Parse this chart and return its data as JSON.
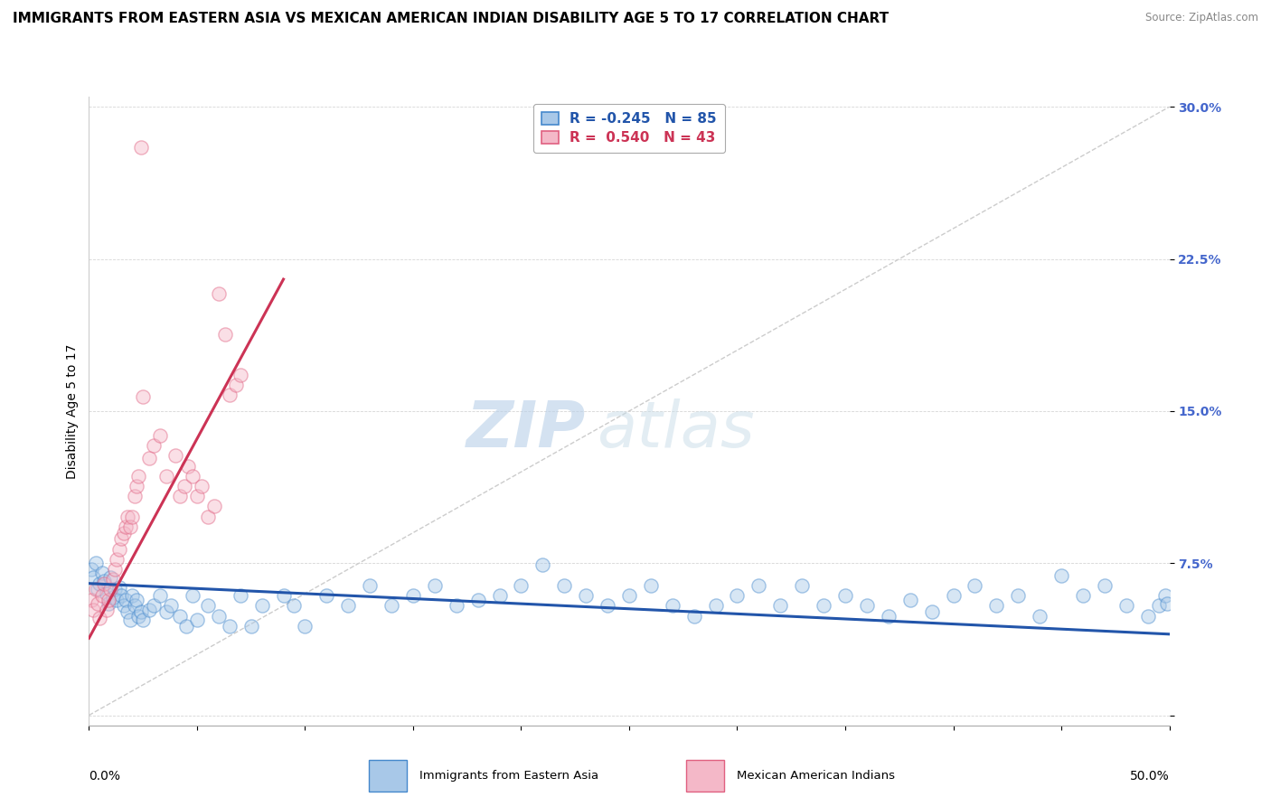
{
  "title": "IMMIGRANTS FROM EASTERN ASIA VS MEXICAN AMERICAN INDIAN DISABILITY AGE 5 TO 17 CORRELATION CHART",
  "source": "Source: ZipAtlas.com",
  "ylabel": "Disability Age 5 to 17",
  "legend_blue_r": "-0.245",
  "legend_blue_n": "85",
  "legend_pink_r": "0.540",
  "legend_pink_n": "43",
  "legend_label_blue": "Immigrants from Eastern Asia",
  "legend_label_pink": "Mexican American Indians",
  "watermark_zip": "ZIP",
  "watermark_atlas": "atlas",
  "blue_color": "#a8c8e8",
  "pink_color": "#f4b8c8",
  "blue_edge_color": "#4488cc",
  "pink_edge_color": "#e06080",
  "blue_line_color": "#2255aa",
  "pink_line_color": "#cc3355",
  "diag_line_color": "#cccccc",
  "blue_scatter_x": [
    0.001,
    0.002,
    0.003,
    0.004,
    0.005,
    0.006,
    0.007,
    0.008,
    0.009,
    0.01,
    0.011,
    0.012,
    0.013,
    0.014,
    0.015,
    0.016,
    0.017,
    0.018,
    0.019,
    0.02,
    0.021,
    0.022,
    0.023,
    0.024,
    0.025,
    0.028,
    0.03,
    0.033,
    0.036,
    0.038,
    0.042,
    0.045,
    0.048,
    0.05,
    0.055,
    0.06,
    0.065,
    0.07,
    0.075,
    0.08,
    0.09,
    0.095,
    0.1,
    0.11,
    0.12,
    0.13,
    0.14,
    0.15,
    0.16,
    0.17,
    0.18,
    0.19,
    0.2,
    0.21,
    0.22,
    0.23,
    0.24,
    0.25,
    0.26,
    0.27,
    0.28,
    0.29,
    0.3,
    0.31,
    0.32,
    0.33,
    0.34,
    0.35,
    0.36,
    0.37,
    0.38,
    0.39,
    0.4,
    0.41,
    0.42,
    0.43,
    0.44,
    0.45,
    0.46,
    0.47,
    0.48,
    0.49,
    0.495,
    0.498,
    0.499
  ],
  "blue_scatter_y": [
    0.072,
    0.068,
    0.075,
    0.062,
    0.065,
    0.07,
    0.066,
    0.06,
    0.055,
    0.068,
    0.058,
    0.062,
    0.057,
    0.063,
    0.059,
    0.054,
    0.057,
    0.051,
    0.047,
    0.059,
    0.054,
    0.057,
    0.049,
    0.051,
    0.047,
    0.052,
    0.054,
    0.059,
    0.051,
    0.054,
    0.049,
    0.044,
    0.059,
    0.047,
    0.054,
    0.049,
    0.044,
    0.059,
    0.044,
    0.054,
    0.059,
    0.054,
    0.044,
    0.059,
    0.054,
    0.064,
    0.054,
    0.059,
    0.064,
    0.054,
    0.057,
    0.059,
    0.064,
    0.074,
    0.064,
    0.059,
    0.054,
    0.059,
    0.064,
    0.054,
    0.049,
    0.054,
    0.059,
    0.064,
    0.054,
    0.064,
    0.054,
    0.059,
    0.054,
    0.049,
    0.057,
    0.051,
    0.059,
    0.064,
    0.054,
    0.059,
    0.049,
    0.069,
    0.059,
    0.064,
    0.054,
    0.049,
    0.054,
    0.059,
    0.055
  ],
  "pink_scatter_x": [
    0.001,
    0.002,
    0.003,
    0.004,
    0.005,
    0.006,
    0.007,
    0.008,
    0.009,
    0.01,
    0.011,
    0.012,
    0.013,
    0.014,
    0.015,
    0.016,
    0.017,
    0.018,
    0.019,
    0.02,
    0.021,
    0.022,
    0.023,
    0.024,
    0.025,
    0.028,
    0.03,
    0.033,
    0.036,
    0.04,
    0.042,
    0.044,
    0.046,
    0.048,
    0.05,
    0.052,
    0.055,
    0.058,
    0.06,
    0.063,
    0.065,
    0.068,
    0.07
  ],
  "pink_scatter_y": [
    0.057,
    0.052,
    0.062,
    0.055,
    0.048,
    0.059,
    0.065,
    0.052,
    0.057,
    0.062,
    0.067,
    0.072,
    0.077,
    0.082,
    0.087,
    0.09,
    0.093,
    0.098,
    0.093,
    0.098,
    0.108,
    0.113,
    0.118,
    0.28,
    0.157,
    0.127,
    0.133,
    0.138,
    0.118,
    0.128,
    0.108,
    0.113,
    0.123,
    0.118,
    0.108,
    0.113,
    0.098,
    0.103,
    0.208,
    0.188,
    0.158,
    0.163,
    0.168
  ],
  "xlim": [
    0.0,
    0.5
  ],
  "ylim": [
    -0.005,
    0.305
  ],
  "yticks": [
    0.0,
    0.075,
    0.15,
    0.225,
    0.3
  ],
  "ytick_labels": [
    "",
    "7.5%",
    "15.0%",
    "22.5%",
    "30.0%"
  ],
  "blue_trend_x": [
    0.0,
    0.5
  ],
  "blue_trend_y": [
    0.065,
    0.04
  ],
  "pink_trend_x": [
    0.0,
    0.09
  ],
  "pink_trend_y": [
    0.038,
    0.215
  ],
  "diag_line_x": [
    0.0,
    0.5
  ],
  "diag_line_y": [
    0.0,
    0.3
  ],
  "background_color": "#ffffff",
  "grid_color": "#cccccc",
  "title_fontsize": 11,
  "axis_fontsize": 10,
  "tick_fontsize": 10,
  "scatter_size": 120,
  "scatter_alpha": 0.45,
  "scatter_lw": 1.0,
  "line_lw": 2.2,
  "tick_color": "#4466cc"
}
